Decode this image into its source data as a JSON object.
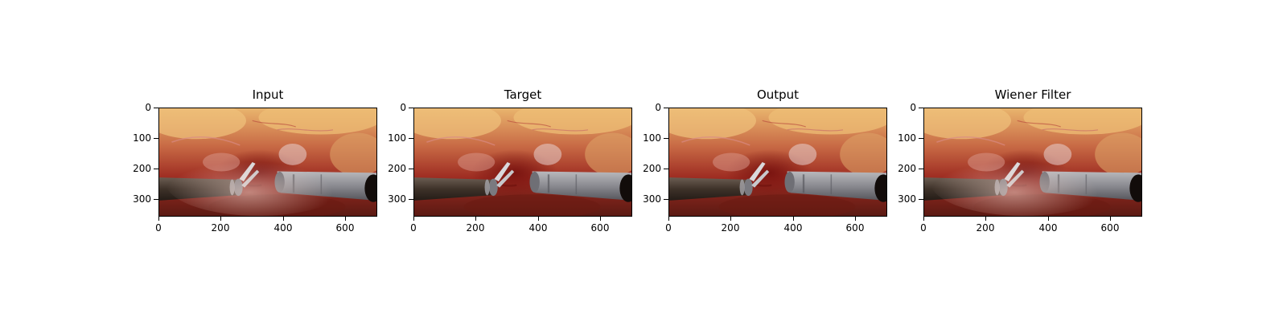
{
  "figure": {
    "panels": [
      {
        "title": "Input",
        "image_variant": "hazy"
      },
      {
        "title": "Target",
        "image_variant": "clear"
      },
      {
        "title": "Output",
        "image_variant": "clear"
      },
      {
        "title": "Wiener Filter",
        "image_variant": "hazy"
      }
    ],
    "y_ticks": [
      "0",
      "100",
      "200",
      "300"
    ],
    "x_ticks": [
      "0",
      "200",
      "400",
      "600"
    ],
    "image_description": "laparoscopic surgical scene with metal instruments",
    "colors": {
      "tissue_yellow": "#e7b56a",
      "tissue_red": "#9b2a1f",
      "instrument_gray": "#8d8d92",
      "shaft_dark": "#3a2f27"
    }
  }
}
